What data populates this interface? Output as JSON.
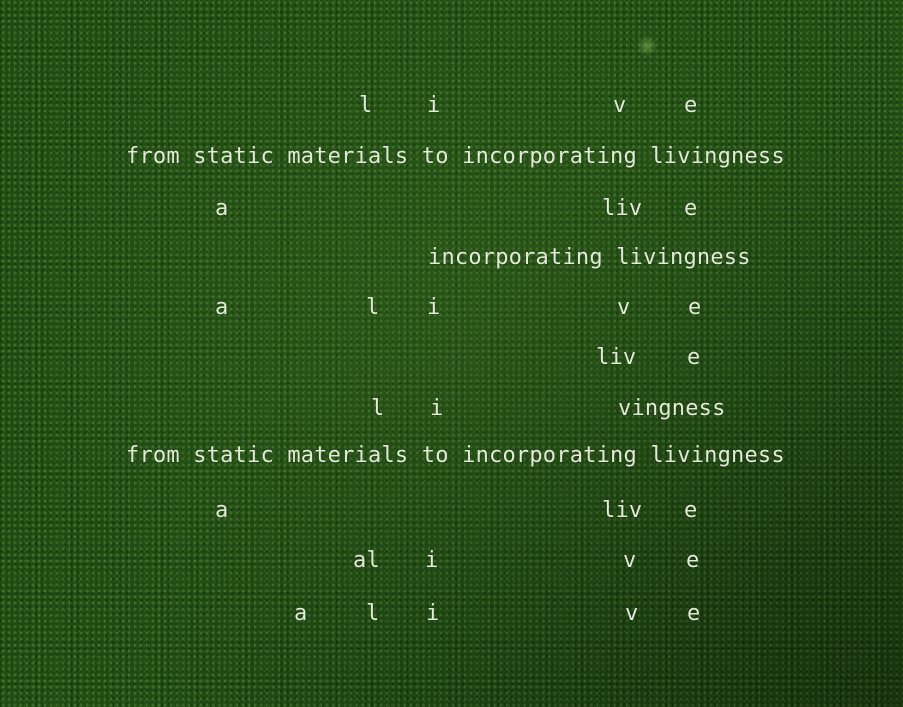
{
  "poem": {
    "line1": {
      "l": "l",
      "i": "i",
      "v": "v",
      "e": "e"
    },
    "line2": {
      "full": "from static materials to incorporating livingness"
    },
    "line3": {
      "a": "a",
      "liv": "liv",
      "e": "e"
    },
    "line4": {
      "full": "incorporating livingness"
    },
    "line5": {
      "a": "a",
      "l": "l",
      "i": "i",
      "v": "v",
      "e": "e"
    },
    "line6": {
      "liv": "liv",
      "e": "e"
    },
    "line7": {
      "l": "l",
      "i": "i",
      "vingness": "vingness"
    },
    "line8": {
      "full": "from static materials to incorporating livingness"
    },
    "line9": {
      "a": "a",
      "liv": "liv",
      "e": "e"
    },
    "line10": {
      "al": "al",
      "i": "i",
      "v": "v",
      "e": "e"
    },
    "line11": {
      "a": "a",
      "l": "l",
      "i": "i",
      "v": "v",
      "e": "e"
    }
  }
}
